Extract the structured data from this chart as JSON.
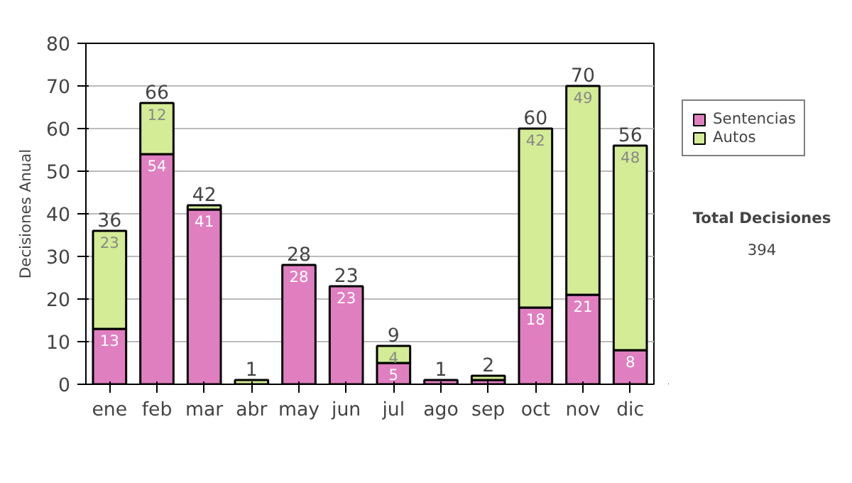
{
  "chart_data": {
    "type": "bar",
    "stacked": true,
    "ylabel": "Decisiones Anual",
    "categories": [
      "ene",
      "feb",
      "mar",
      "abr",
      "may",
      "jun",
      "jul",
      "ago",
      "sep",
      "oct",
      "nov",
      "dic"
    ],
    "series": [
      {
        "name": "Sentencias",
        "color": "#e07fc0",
        "values": [
          13,
          54,
          41,
          0,
          28,
          23,
          5,
          1,
          1,
          18,
          21,
          8
        ],
        "value_labels": [
          "13",
          "54",
          "41",
          null,
          "28",
          "23",
          "5",
          null,
          null,
          "18",
          "21",
          "8"
        ]
      },
      {
        "name": "Autos",
        "color": "#d4ec96",
        "values": [
          23,
          12,
          1,
          1,
          0,
          0,
          4,
          0,
          1,
          42,
          49,
          48
        ],
        "value_labels": [
          "23",
          "12",
          null,
          null,
          null,
          null,
          "4",
          null,
          null,
          "42",
          "49",
          "48"
        ]
      }
    ],
    "totals": [
      "36",
      "66",
      "42",
      "1",
      "28",
      "23",
      "9",
      "1",
      "2",
      "60",
      "70",
      "56"
    ],
    "ylim": [
      0,
      80
    ],
    "yticks": [
      0,
      10,
      20,
      30,
      40,
      50,
      60,
      70,
      80
    ],
    "grid": "y",
    "legend": "right",
    "annotations": [
      "Total Decisiones",
      "394"
    ]
  }
}
